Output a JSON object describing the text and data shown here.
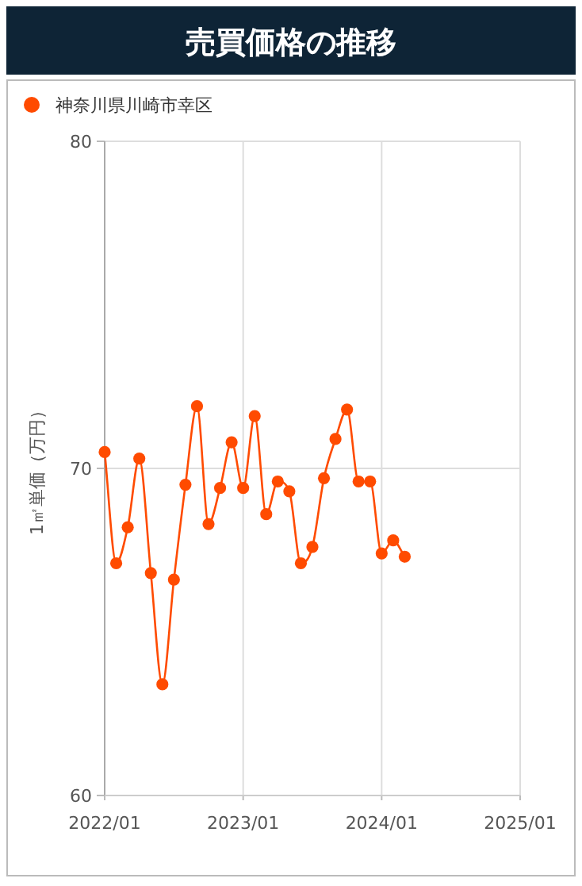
{
  "chart_data": {
    "type": "line",
    "title": "売買価格の推移",
    "ylabel": "1㎡単価（万円）",
    "x": [
      "2022-01",
      "2022-02",
      "2022-03",
      "2022-04",
      "2022-05",
      "2022-06",
      "2022-07",
      "2022-08",
      "2022-09",
      "2022-10",
      "2022-11",
      "2022-12",
      "2023-01",
      "2023-02",
      "2023-03",
      "2023-04",
      "2023-05",
      "2023-06",
      "2023-07",
      "2023-08",
      "2023-09",
      "2023-10",
      "2023-11",
      "2023-12",
      "2024-01",
      "2024-02",
      "2024-03"
    ],
    "series": [
      {
        "name": "神奈川県川崎市幸区",
        "color": "#ff4b00",
        "values": [
          70.5,
          67.1,
          68.2,
          70.3,
          66.8,
          63.4,
          66.6,
          69.5,
          71.9,
          68.3,
          69.4,
          70.8,
          69.4,
          71.6,
          68.6,
          69.6,
          69.3,
          67.1,
          67.6,
          69.7,
          70.9,
          71.8,
          69.6,
          69.6,
          67.4,
          67.8,
          67.3
        ]
      }
    ],
    "xlim": [
      "2022-01",
      "2025-01"
    ],
    "xticks": [
      {
        "value": "2022-01",
        "label": "2022/01"
      },
      {
        "value": "2023-01",
        "label": "2023/01"
      },
      {
        "value": "2024-01",
        "label": "2024/01"
      },
      {
        "value": "2025-01",
        "label": "2025/01"
      }
    ],
    "ylim": [
      60,
      80
    ],
    "yticks": [
      60,
      70,
      80
    ],
    "grid": true,
    "legend": "top left",
    "marker": "circle",
    "line_style": "solid"
  }
}
